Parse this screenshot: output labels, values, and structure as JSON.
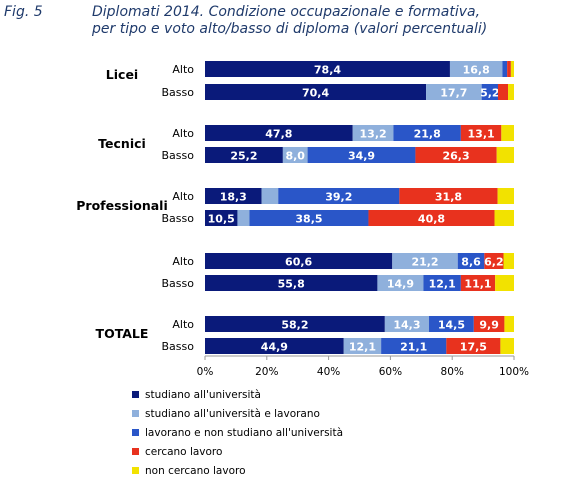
{
  "figure_label": "Fig. 5",
  "title_line1": "Diplomati 2014. Condizione occupazionale e formativa,",
  "title_line2": "per tipo e voto alto/basso di diploma (valori percentuali)",
  "chart_data": {
    "type": "bar",
    "orientation": "horizontal",
    "stacked": true,
    "groups": [
      {
        "name": "Licei",
        "rows": [
          {
            "label": "Alto",
            "values": [
              78.4,
              16.8,
              1.5,
              1.2,
              1.0
            ],
            "labels": [
              "78,4",
              "16,8",
              "",
              "",
              ""
            ]
          },
          {
            "label": "Basso",
            "values": [
              70.4,
              17.7,
              5.2,
              3.2,
              1.9
            ],
            "labels": [
              "70,4",
              "17,7",
              "5,2",
              "",
              ""
            ]
          }
        ]
      },
      {
        "name": "Tecnici",
        "rows": [
          {
            "label": "Alto",
            "values": [
              47.8,
              13.2,
              21.8,
              13.1,
              4.1
            ],
            "labels": [
              "47,8",
              "13,2",
              "21,8",
              "13,1",
              ""
            ]
          },
          {
            "label": "Basso",
            "values": [
              25.2,
              8.0,
              34.9,
              26.3,
              5.6
            ],
            "labels": [
              "25,2",
              "8,0",
              "34,9",
              "26,3",
              ""
            ]
          }
        ]
      },
      {
        "name": "Professionali",
        "rows": [
          {
            "label": "Alto",
            "values": [
              18.3,
              5.4,
              39.2,
              31.8,
              5.3
            ],
            "labels": [
              "18,3",
              "",
              "39,2",
              "31,8",
              ""
            ]
          },
          {
            "label": "Basso",
            "values": [
              10.5,
              3.9,
              38.5,
              40.8,
              6.3
            ],
            "labels": [
              "10,5",
              "",
              "38,5",
              "40,8",
              ""
            ]
          }
        ]
      },
      {
        "name": "",
        "rows": [
          {
            "label": "Alto",
            "values": [
              60.6,
              21.2,
              8.6,
              6.2,
              3.4
            ],
            "labels": [
              "60,6",
              "21,2",
              "8,6",
              "6,2",
              ""
            ]
          },
          {
            "label": "Basso",
            "values": [
              55.8,
              14.9,
              12.1,
              11.1,
              6.1
            ],
            "labels": [
              "55,8",
              "14,9",
              "12,1",
              "11,1",
              ""
            ]
          }
        ]
      },
      {
        "name": "TOTALE",
        "rows": [
          {
            "label": "Alto",
            "values": [
              58.2,
              14.3,
              14.5,
              9.9,
              3.1
            ],
            "labels": [
              "58,2",
              "14,3",
              "14,5",
              "9,9",
              ""
            ]
          },
          {
            "label": "Basso",
            "values": [
              44.9,
              12.1,
              21.1,
              17.5,
              4.4
            ],
            "labels": [
              "44,9",
              "12,1",
              "21,1",
              "17,5",
              ""
            ]
          }
        ]
      }
    ],
    "series": [
      {
        "name": "studiano all'università",
        "color": "#0a1a7a"
      },
      {
        "name": "studiano all'università e lavorano",
        "color": "#8fb0dc"
      },
      {
        "name": "lavorano e non studiano all'università",
        "color": "#2a56c8"
      },
      {
        "name": "cercano lavoro",
        "color": "#e8321e"
      },
      {
        "name": "non  cercano lavoro",
        "color": "#f2e200"
      }
    ],
    "x_ticks": [
      "0%",
      "20%",
      "40%",
      "60%",
      "80%",
      "100%"
    ],
    "xlim": [
      0,
      100
    ],
    "legend_position": "bottom-left"
  }
}
